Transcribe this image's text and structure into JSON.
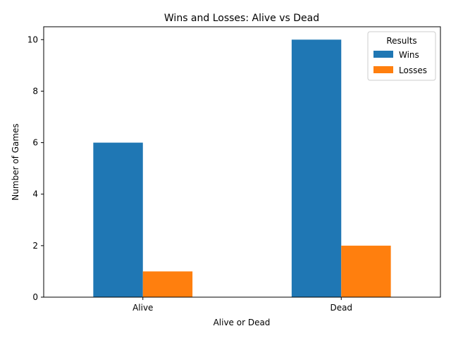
{
  "chart_data": {
    "type": "bar",
    "title": "Wins and Losses: Alive vs Dead",
    "xlabel": "Alive or Dead",
    "ylabel": "Number of Games",
    "categories": [
      "Alive",
      "Dead"
    ],
    "series": [
      {
        "name": "Wins",
        "values": [
          6,
          10
        ],
        "color": "#1f77b4"
      },
      {
        "name": "Losses",
        "values": [
          1,
          2
        ],
        "color": "#ff7f0e"
      }
    ],
    "ylim": [
      0,
      10.5
    ],
    "yticks": [
      0,
      2,
      4,
      6,
      8,
      10
    ],
    "grid": false,
    "legend": {
      "title": "Results",
      "position": "top-right"
    }
  }
}
